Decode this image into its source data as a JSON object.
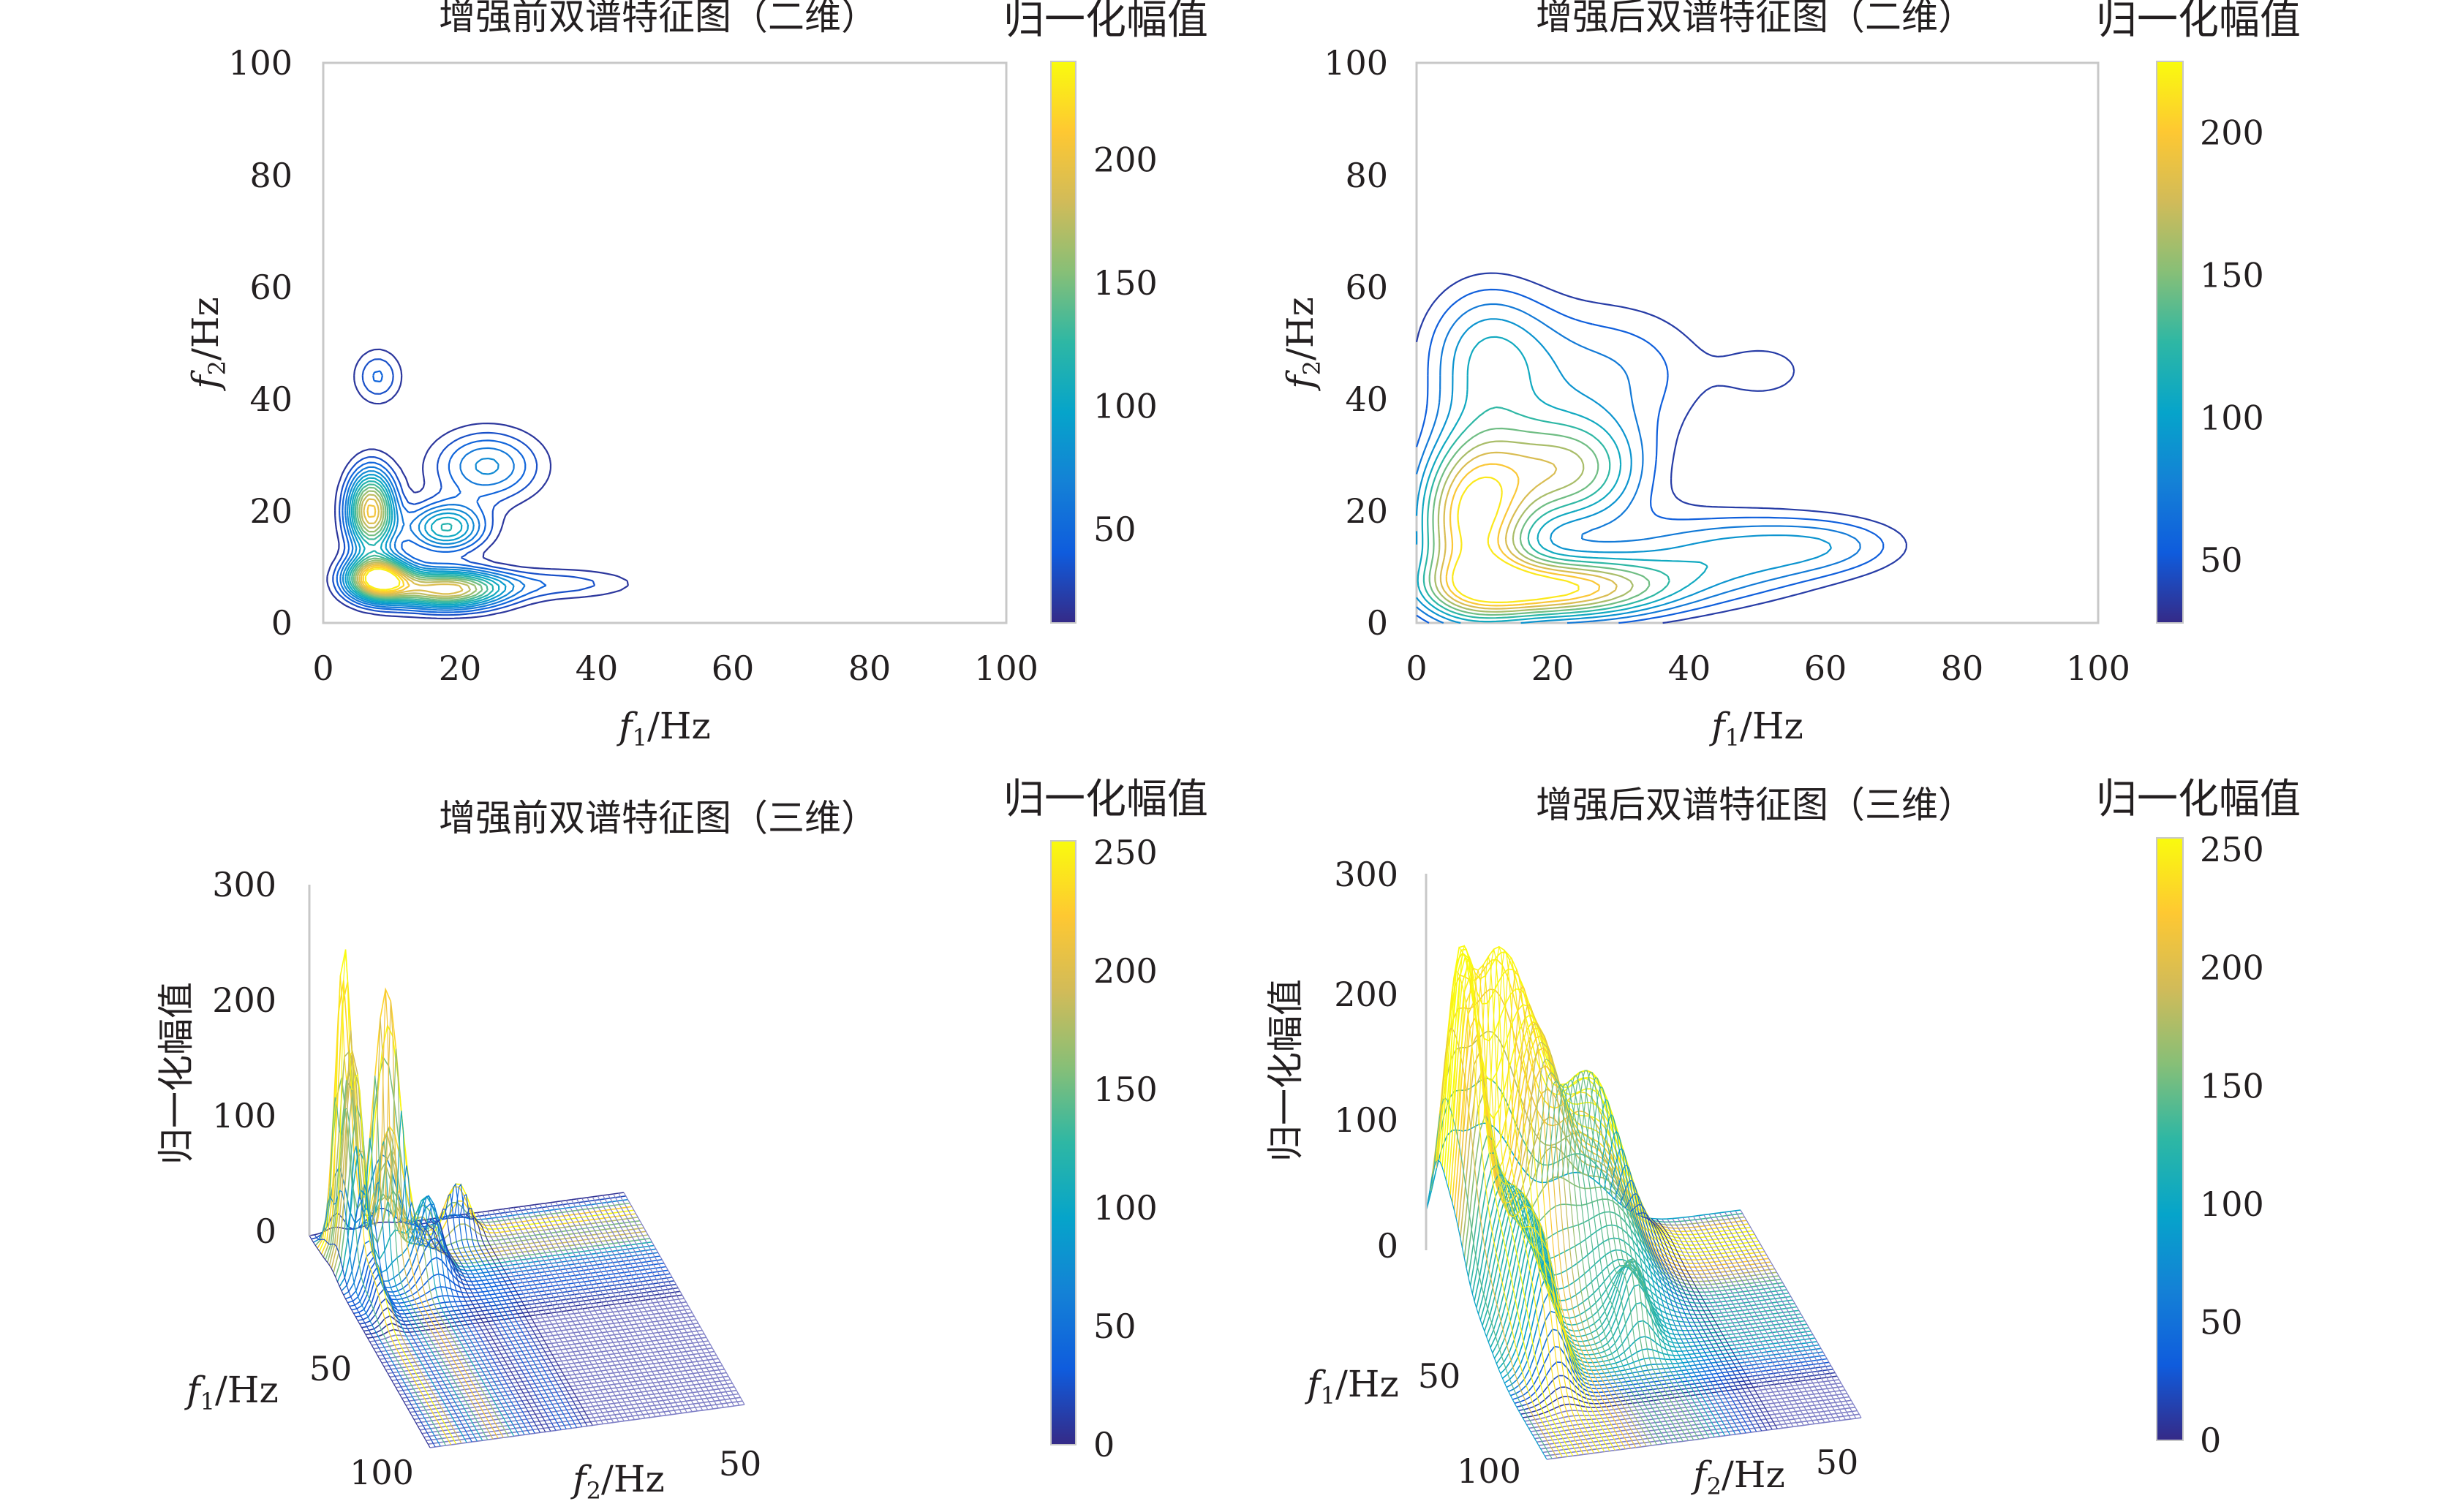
{
  "chart_data": [
    {
      "type": "contour",
      "title": "增强前双谱特征图（二维）",
      "xlabel_var": "f",
      "xlabel_sub": "1",
      "xlabel_unit": "/Hz",
      "ylabel_var": "f",
      "ylabel_sub": "2",
      "ylabel_unit": "/Hz",
      "xlim": [
        0,
        100
      ],
      "ylim": [
        0,
        100
      ],
      "xticks": [
        "0",
        "20",
        "40",
        "60",
        "80",
        "100"
      ],
      "yticks": [
        "0",
        "20",
        "40",
        "60",
        "80",
        "100"
      ],
      "colorbar": {
        "title": "归一化幅值",
        "range": [
          12,
          240
        ],
        "ticks": [
          "50",
          "100",
          "150",
          "200"
        ],
        "tick_values": [
          50,
          100,
          150,
          200
        ]
      },
      "peaks": [
        {
          "x": 8,
          "y": 8,
          "amplitude": 240,
          "sx": 3.2,
          "sy": 2.6
        },
        {
          "x": 7,
          "y": 20,
          "amplitude": 210,
          "sx": 2.4,
          "sy": 5.0
        },
        {
          "x": 18,
          "y": 6,
          "amplitude": 200,
          "sx": 6.0,
          "sy": 2.4
        },
        {
          "x": 18,
          "y": 17,
          "amplitude": 120,
          "sx": 4.0,
          "sy": 3.0
        },
        {
          "x": 24,
          "y": 28,
          "amplitude": 80,
          "sx": 5.5,
          "sy": 4.5
        },
        {
          "x": 8,
          "y": 44,
          "amplitude": 50,
          "sx": 2.5,
          "sy": 3.5
        },
        {
          "x": 35,
          "y": 7,
          "amplitude": 40,
          "sx": 8.0,
          "sy": 2.0
        }
      ]
    },
    {
      "type": "contour",
      "title": "增强后双谱特征图（二维）",
      "xlabel_var": "f",
      "xlabel_sub": "1",
      "xlabel_unit": "/Hz",
      "ylabel_var": "f",
      "ylabel_sub": "2",
      "ylabel_unit": "/Hz",
      "xlim": [
        0,
        100
      ],
      "ylim": [
        0,
        100
      ],
      "xticks": [
        "0",
        "20",
        "40",
        "60",
        "80",
        "100"
      ],
      "yticks": [
        "0",
        "20",
        "40",
        "60",
        "80",
        "100"
      ],
      "colorbar": {
        "title": "归一化幅值",
        "range": [
          28,
          225
        ],
        "ticks": [
          "50",
          "100",
          "150",
          "200"
        ],
        "tick_values": [
          50,
          100,
          150,
          200
        ]
      },
      "peaks": [
        {
          "x": 8,
          "y": 18,
          "amplitude": 215,
          "sx": 6.0,
          "sy": 11.0
        },
        {
          "x": 20,
          "y": 6,
          "amplitude": 210,
          "sx": 12.0,
          "sy": 4.0
        },
        {
          "x": 22,
          "y": 27,
          "amplitude": 150,
          "sx": 8.0,
          "sy": 7.0
        },
        {
          "x": 10,
          "y": 48,
          "amplitude": 90,
          "sx": 7.0,
          "sy": 10.0
        },
        {
          "x": 45,
          "y": 12,
          "amplitude": 90,
          "sx": 12.0,
          "sy": 6.0
        },
        {
          "x": 28,
          "y": 45,
          "amplitude": 70,
          "sx": 12.0,
          "sy": 10.0
        },
        {
          "x": 62,
          "y": 14,
          "amplitude": 55,
          "sx": 9.0,
          "sy": 4.0
        },
        {
          "x": 52,
          "y": 45,
          "amplitude": 40,
          "sx": 5.0,
          "sy": 4.0
        }
      ]
    },
    {
      "type": "surface",
      "title": "增强前双谱特征图（三维）",
      "zlabel": "归一化幅值",
      "xlabel_var": "f",
      "xlabel_sub": "1",
      "xlabel_unit": "/Hz",
      "ylabel_var": "f",
      "ylabel_sub": "2",
      "ylabel_unit": "/Hz",
      "zticks": [
        "0",
        "100",
        "200",
        "300"
      ],
      "f1_ticks": [
        "50",
        "100"
      ],
      "f2_ticks": [
        "50"
      ],
      "zlim": [
        0,
        300
      ],
      "colorbar": {
        "title": "归一化幅值",
        "range": [
          0,
          255
        ],
        "ticks": [
          "0",
          "50",
          "100",
          "150",
          "200",
          "250"
        ],
        "tick_values": [
          0,
          50,
          100,
          150,
          200,
          250
        ]
      }
    },
    {
      "type": "surface",
      "title": "增强后双谱特征图（三维）",
      "zlabel": "归一化幅值",
      "xlabel_var": "f",
      "xlabel_sub": "1",
      "xlabel_unit": "/Hz",
      "ylabel_var": "f",
      "ylabel_sub": "2",
      "ylabel_unit": "/Hz",
      "zticks": [
        "0",
        "100",
        "200",
        "300"
      ],
      "f1_ticks": [
        "50",
        "100"
      ],
      "f2_ticks": [
        "50"
      ],
      "zlim": [
        0,
        300
      ],
      "colorbar": {
        "title": "归一化幅值",
        "range": [
          0,
          255
        ],
        "ticks": [
          "0",
          "50",
          "100",
          "150",
          "200",
          "250"
        ],
        "tick_values": [
          0,
          50,
          100,
          150,
          200,
          250
        ]
      }
    }
  ],
  "colors": {
    "parula": [
      "#352a87",
      "#0f5cdd",
      "#1481d6",
      "#06a4ca",
      "#2eb7a4",
      "#87bf77",
      "#d1bb59",
      "#fec832",
      "#f9fb0e"
    ],
    "axis": "#c8c8c8",
    "text": "#231f20",
    "surface_floor": "#7f7fc6"
  }
}
